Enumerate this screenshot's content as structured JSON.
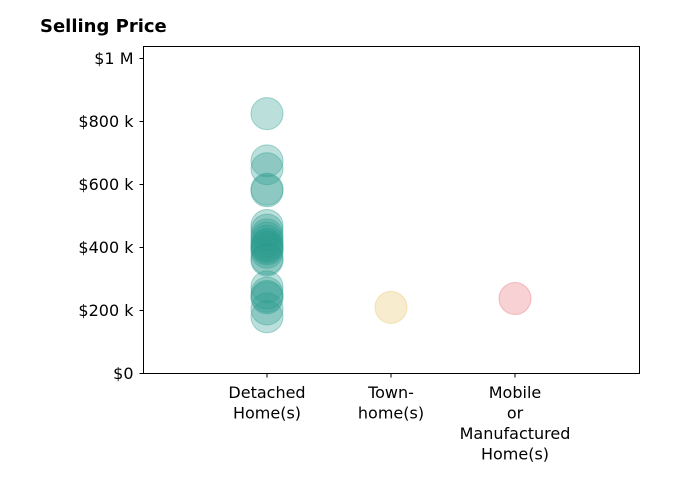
{
  "chart_data": {
    "type": "scatter",
    "title": "Selling Price",
    "xlabel": "",
    "ylabel": "",
    "ylim": [
      0,
      1000000
    ],
    "grid": false,
    "y_ticks": [
      {
        "value": 0,
        "label": "$0"
      },
      {
        "value": 200000,
        "label": "$200 k"
      },
      {
        "value": 400000,
        "label": "$400 k"
      },
      {
        "value": 600000,
        "label": "$600 k"
      },
      {
        "value": 800000,
        "label": "$800 k"
      },
      {
        "value": 1000000,
        "label": "$1 M"
      }
    ],
    "categories": [
      {
        "lines": [
          "Detached",
          "Home(s)"
        ]
      },
      {
        "lines": [
          "Town-",
          "home(s)"
        ]
      },
      {
        "lines": [
          "Mobile",
          "or",
          "Manufactured",
          "Home(s)"
        ]
      }
    ],
    "series": [
      {
        "category_index": 0,
        "color": "#2a9d8f",
        "values": [
          825000,
          675000,
          650000,
          585000,
          580000,
          470000,
          455000,
          440000,
          430000,
          420000,
          410000,
          405000,
          400000,
          395000,
          385000,
          365000,
          360000,
          275000,
          255000,
          245000,
          240000,
          205000,
          180000
        ]
      },
      {
        "category_index": 1,
        "color": "#e9c46a",
        "values": [
          210000
        ]
      },
      {
        "category_index": 2,
        "color": "#e76f7a",
        "values": [
          238000
        ]
      }
    ]
  }
}
